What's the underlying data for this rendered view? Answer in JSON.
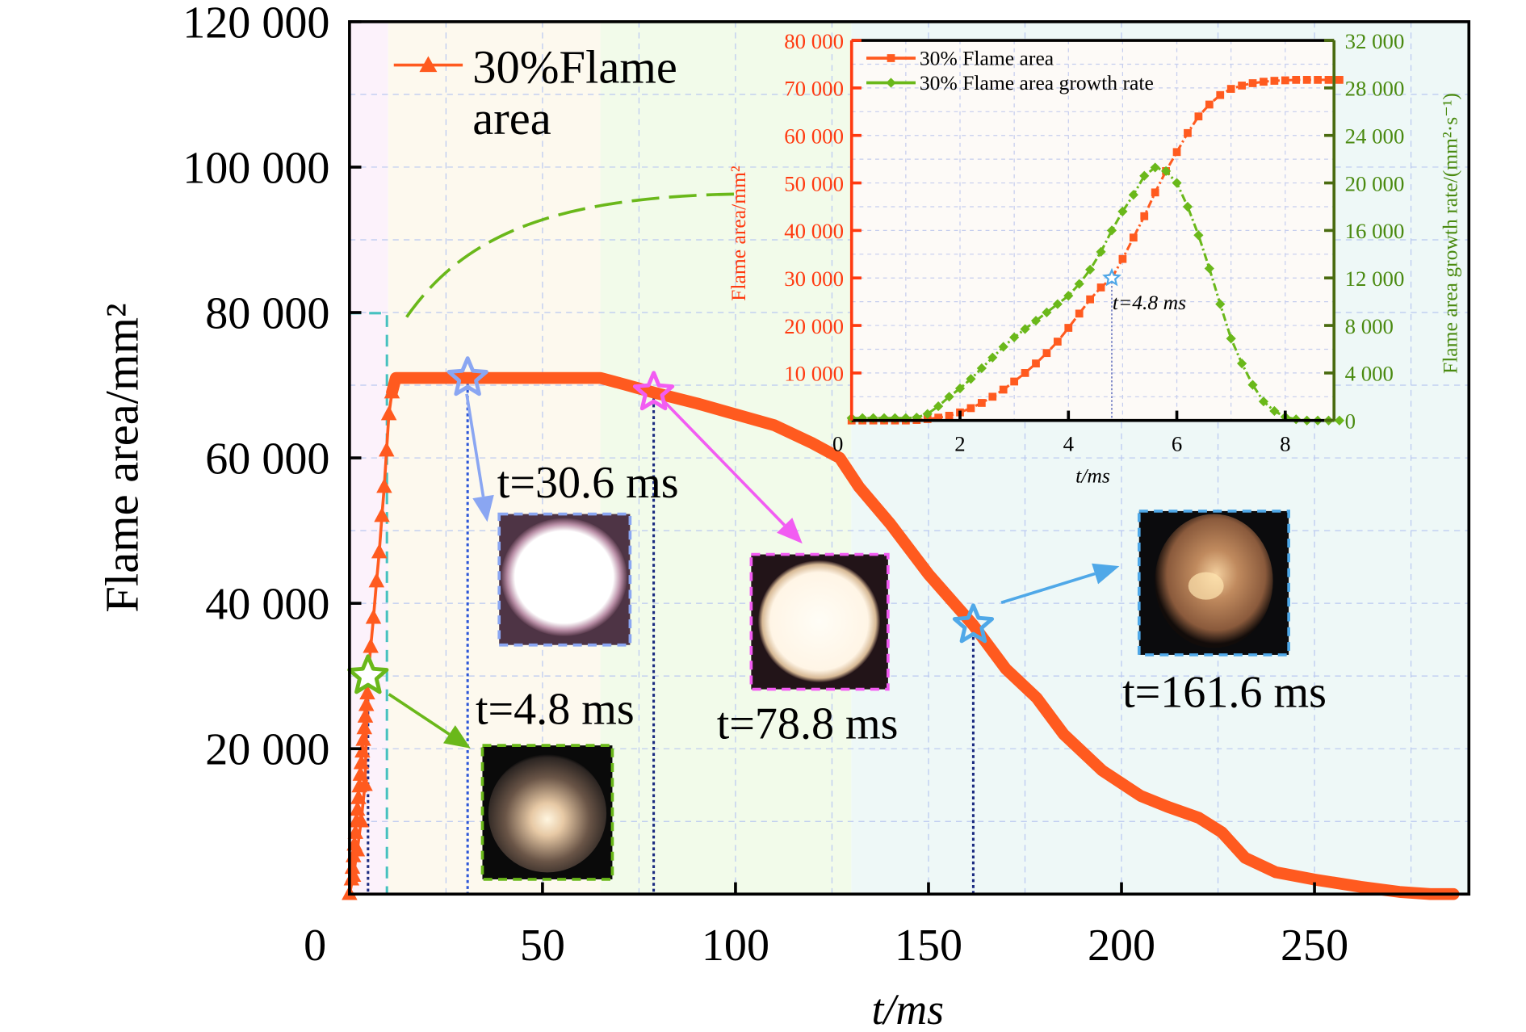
{
  "chart_data": [
    {
      "type": "line",
      "xlabel": "t/ms",
      "ylabel": "Flame area/mm²",
      "xlim": [
        0,
        290
      ],
      "ylim": [
        0,
        120000
      ],
      "xticks": [
        "0",
        "50",
        "100",
        "150",
        "200",
        "250"
      ],
      "yticks": [
        "20 000",
        "40 000",
        "60 000",
        "80 000",
        "100 000",
        "120 000"
      ],
      "grid": true,
      "legend_placement": "top-left",
      "legend": {
        "line1": "30%Flame",
        "line2": "area"
      },
      "series": [
        {
          "name": "30%Flame area",
          "color": "#ff5a1f",
          "x": [
            0,
            1,
            2,
            3,
            4,
            4.8,
            5.5,
            6.2,
            7,
            7.7,
            8.4,
            9,
            9.6,
            10.2,
            11,
            12,
            15,
            30.6,
            50,
            65,
            72,
            78.8,
            90,
            100,
            110,
            120,
            127,
            132,
            140,
            150,
            161.6,
            170,
            178,
            185,
            195,
            205,
            212,
            220,
            226,
            232,
            240,
            250,
            262,
            272,
            280,
            286
          ],
          "y": [
            0,
            2500,
            6000,
            10000,
            15000,
            30000,
            34000,
            38000,
            43000,
            47000,
            52000,
            56000,
            61000,
            66000,
            69000,
            71000,
            71000,
            71000,
            71000,
            71000,
            70000,
            69000,
            67500,
            66000,
            64500,
            62000,
            60000,
            56000,
            51000,
            44000,
            37000,
            31000,
            27000,
            22000,
            17000,
            13500,
            12000,
            10500,
            8500,
            5000,
            3000,
            2000,
            1000,
            300,
            0,
            0
          ]
        }
      ],
      "annotations": [
        {
          "label": "t=4.8 ms",
          "t": 4.8,
          "value": 30000,
          "color": "#6ab81a"
        },
        {
          "label": "t=30.6 ms",
          "t": 30.6,
          "value": 71000,
          "color": "#8aa6f2"
        },
        {
          "label": "t=78.8 ms",
          "t": 78.8,
          "value": 69000,
          "color": "#f25cf2"
        },
        {
          "label": "t=161.6 ms",
          "t": 161.6,
          "value": 37000,
          "color": "#4fa8e8"
        }
      ],
      "background_bands": [
        {
          "from": 0,
          "to": 10,
          "color": "#fcf2fb"
        },
        {
          "from": 10,
          "to": 65,
          "color": "#fdf9ee"
        },
        {
          "from": 65,
          "to": 130,
          "color": "#f2fbea"
        },
        {
          "from": 130,
          "to": 290,
          "color": "#eef8f7"
        }
      ]
    },
    {
      "type": "line",
      "xlabel": "t/ms",
      "ylabel": "Flame area/mm²",
      "y2label": "Flame area growth rate/(mm²·s⁻¹)",
      "xlim": [
        0,
        9
      ],
      "ylim": [
        0,
        80000
      ],
      "y2lim": [
        0,
        32000
      ],
      "xticks": [
        "0",
        "2",
        "4",
        "6",
        "8"
      ],
      "yticks": [
        "10 000",
        "20 000",
        "30 000",
        "40 000",
        "50 000",
        "60 000",
        "70 000",
        "80 000"
      ],
      "y2ticks": [
        "0",
        "4 000",
        "8 000",
        "12 000",
        "16 000",
        "20 000",
        "24 000",
        "28 000",
        "32 000"
      ],
      "grid": true,
      "legend_placement": "top-left",
      "annotation": "t=4.8 ms",
      "series": [
        {
          "name": "30% Flame area",
          "color": "#ff5a1f",
          "axis": "left",
          "x": [
            0,
            0.2,
            0.4,
            0.6,
            0.8,
            1.0,
            1.2,
            1.4,
            1.6,
            1.8,
            2.0,
            2.2,
            2.4,
            2.6,
            2.8,
            3.0,
            3.2,
            3.4,
            3.6,
            3.8,
            4.0,
            4.2,
            4.4,
            4.6,
            4.8,
            5.0,
            5.2,
            5.4,
            5.6,
            5.8,
            6.0,
            6.2,
            6.4,
            6.6,
            6.8,
            7.0,
            7.2,
            7.4,
            7.6,
            7.8,
            8.0,
            8.2,
            8.4,
            8.6,
            8.8,
            9.0
          ],
          "y": [
            0,
            0,
            0,
            0,
            0,
            0,
            100,
            300,
            600,
            1000,
            1700,
            2600,
            3700,
            5000,
            6500,
            8200,
            10000,
            12000,
            14200,
            16600,
            19500,
            22500,
            25500,
            28000,
            30000,
            34000,
            38500,
            43000,
            48000,
            52500,
            56500,
            60500,
            64000,
            66500,
            68500,
            69800,
            70500,
            71000,
            71300,
            71500,
            71600,
            71700,
            71700,
            71700,
            71700,
            71700
          ]
        },
        {
          "name": "30% Flame area growth rate",
          "color": "#6ab81a",
          "axis": "right",
          "x": [
            0,
            0.2,
            0.4,
            0.6,
            0.8,
            1.0,
            1.2,
            1.4,
            1.6,
            1.8,
            2.0,
            2.2,
            2.4,
            2.6,
            2.8,
            3.0,
            3.2,
            3.4,
            3.6,
            3.8,
            4.0,
            4.2,
            4.4,
            4.6,
            4.8,
            5.0,
            5.2,
            5.4,
            5.6,
            5.8,
            6.0,
            6.2,
            6.4,
            6.6,
            6.8,
            7.0,
            7.2,
            7.4,
            7.6,
            7.8,
            8.0,
            8.2,
            8.4,
            8.6,
            8.8,
            9.0
          ],
          "y": [
            200,
            200,
            200,
            200,
            200,
            200,
            250,
            550,
            1200,
            2000,
            2700,
            3500,
            4400,
            5300,
            6200,
            7000,
            7700,
            8400,
            9100,
            9800,
            10500,
            11500,
            12700,
            14200,
            16000,
            17600,
            19000,
            20600,
            21300,
            21000,
            20000,
            18000,
            15600,
            12800,
            9800,
            6900,
            4800,
            3000,
            1600,
            800,
            300,
            100,
            0,
            0,
            0,
            0
          ]
        }
      ]
    }
  ]
}
